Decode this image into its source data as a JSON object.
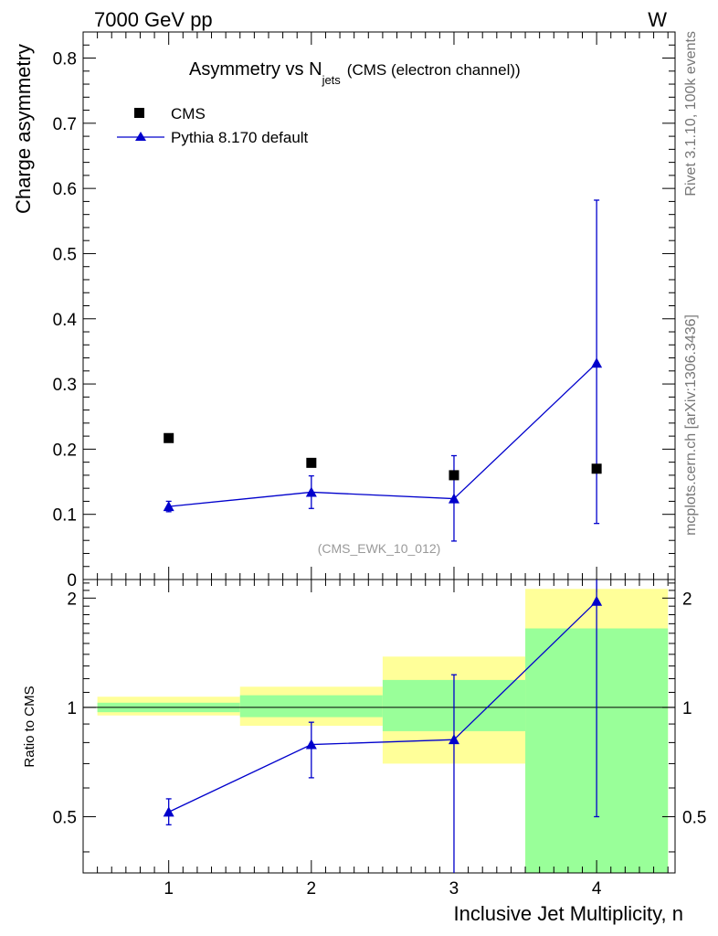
{
  "header": {
    "left": "7000 GeV pp",
    "right": "W"
  },
  "side_labels": {
    "rivet": "Rivet 3.1.10,  100k events",
    "mcplots": "mcplots.cern.ch [arXiv:1306.3436]"
  },
  "chart_data": [
    {
      "type": "scatter",
      "title_main": "Asymmetry vs N",
      "title_sub": "jets",
      "title_tail": "(CMS (electron channel))",
      "ylabel": "Charge asymmetry",
      "watermark": "(CMS_EWK_10_012)",
      "xlim": [
        0.4,
        4.55
      ],
      "ylim": [
        0,
        0.84
      ],
      "yticks": [
        0,
        0.1,
        0.2,
        0.3,
        0.4,
        0.5,
        0.6,
        0.7,
        0.8
      ],
      "ytick_labels": [
        "0",
        "0.1",
        "0.2",
        "0.3",
        "0.4",
        "0.5",
        "0.6",
        "0.7",
        "0.8"
      ],
      "legend_position": "top-left",
      "series": [
        {
          "name": "CMS",
          "marker": "square",
          "color": "#000000",
          "x": [
            1,
            2,
            3,
            4
          ],
          "y": [
            0.217,
            0.179,
            0.16,
            0.17
          ]
        },
        {
          "name": "Pythia 8.170 default",
          "marker": "triangle",
          "color": "#0000cc",
          "x": [
            1,
            2,
            3,
            4
          ],
          "y": [
            0.112,
            0.134,
            0.124,
            0.332
          ],
          "err_low": [
            0.104,
            0.109,
            0.059,
            0.086
          ],
          "err_high": [
            0.12,
            0.159,
            0.19,
            0.582
          ]
        }
      ]
    },
    {
      "type": "scatter",
      "ylabel": "Ratio to CMS",
      "xlabel": "Inclusive Jet Multiplicity, n",
      "xlim": [
        0.4,
        4.55
      ],
      "ylim": [
        0.35,
        2.25
      ],
      "yticks": [
        0.5,
        1,
        2
      ],
      "ytick_labels": [
        "0.5",
        "1",
        "2"
      ],
      "xticks": [
        1,
        2,
        3,
        4
      ],
      "xtick_labels": [
        "1",
        "2",
        "3",
        "4"
      ],
      "reference_line": 1,
      "bands": [
        {
          "x": [
            0.5,
            1.5
          ],
          "green": [
            0.97,
            1.03
          ],
          "yellow": [
            0.95,
            1.07
          ]
        },
        {
          "x": [
            1.5,
            2.5
          ],
          "green": [
            0.94,
            1.08
          ],
          "yellow": [
            0.89,
            1.14
          ]
        },
        {
          "x": [
            2.5,
            3.5
          ],
          "green": [
            0.86,
            1.19
          ],
          "yellow": [
            0.7,
            1.38
          ]
        },
        {
          "x": [
            3.5,
            4.5
          ],
          "green": [
            0.35,
            1.65
          ],
          "yellow": [
            0.35,
            2.12
          ]
        }
      ],
      "band_colors": {
        "green": "#99ff99",
        "yellow": "#ffff99"
      },
      "series": [
        {
          "name": "Pythia 8.170 default",
          "marker": "triangle",
          "color": "#0000cc",
          "x": [
            1,
            2,
            3,
            4
          ],
          "y": [
            0.515,
            0.79,
            0.815,
            1.96
          ],
          "err_low": [
            0.475,
            0.64,
            0.35,
            0.5
          ],
          "err_high": [
            0.56,
            0.91,
            1.23,
            2.25
          ]
        }
      ]
    }
  ]
}
